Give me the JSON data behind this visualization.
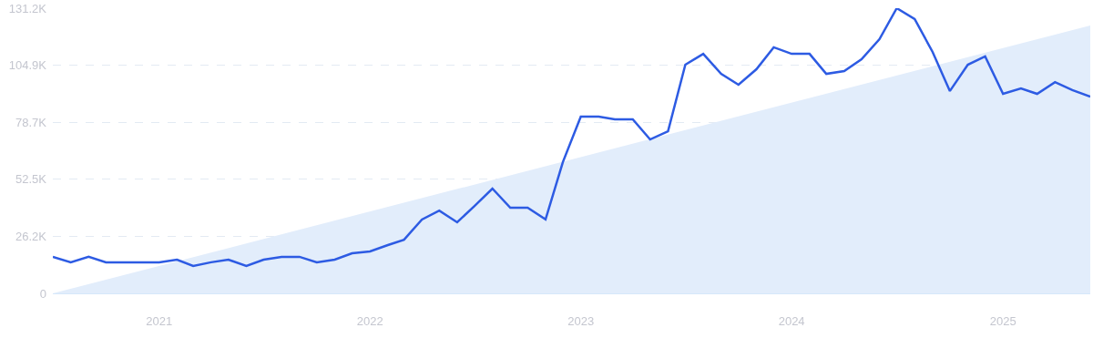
{
  "chart_data": {
    "type": "line",
    "x": [
      "2020-07",
      "2020-08",
      "2020-09",
      "2020-10",
      "2020-11",
      "2020-12",
      "2021-01",
      "2021-02",
      "2021-03",
      "2021-04",
      "2021-05",
      "2021-06",
      "2021-07",
      "2021-08",
      "2021-09",
      "2021-10",
      "2021-11",
      "2021-12",
      "2022-01",
      "2022-02",
      "2022-03",
      "2022-04",
      "2022-05",
      "2022-06",
      "2022-07",
      "2022-08",
      "2022-09",
      "2022-10",
      "2022-11",
      "2022-12",
      "2023-01",
      "2023-02",
      "2023-03",
      "2023-04",
      "2023-05",
      "2023-06",
      "2023-07",
      "2023-08",
      "2023-09",
      "2023-10",
      "2023-11",
      "2023-12",
      "2024-01",
      "2024-02",
      "2024-03",
      "2024-04",
      "2024-05",
      "2024-06",
      "2024-07",
      "2024-08",
      "2024-09",
      "2024-10",
      "2024-11",
      "2024-12",
      "2025-01",
      "2025-02",
      "2025-03",
      "2025-04",
      "2025-05",
      "2025-06"
    ],
    "series": [
      {
        "type": "area",
        "color": "#e2edfb",
        "x": [
          "2020-07",
          "2025-06"
        ],
        "values": [
          0,
          123200
        ]
      },
      {
        "color": "#2d5be3",
        "values": [
          16800,
          14300,
          16800,
          14300,
          14300,
          14300,
          14300,
          15500,
          12600,
          14300,
          15500,
          12600,
          15500,
          16800,
          16800,
          14300,
          15500,
          18400,
          19300,
          22200,
          24700,
          34000,
          38100,
          32700,
          40200,
          48200,
          39400,
          39400,
          34000,
          60400,
          81300,
          81300,
          80100,
          80100,
          70800,
          74600,
          105200,
          110200,
          101000,
          96000,
          103100,
          113200,
          110200,
          110200,
          101000,
          102300,
          107700,
          116900,
          131200,
          126200,
          111100,
          93100,
          105200,
          109000,
          91800,
          94300,
          91800,
          97200,
          93500,
          90500
        ]
      }
    ],
    "xlim": [
      "2020-07",
      "2025-06"
    ],
    "xticks": [
      {
        "value": "2021-01",
        "label": "2021"
      },
      {
        "value": "2022-01",
        "label": "2022"
      },
      {
        "value": "2023-01",
        "label": "2023"
      },
      {
        "value": "2024-01",
        "label": "2024"
      },
      {
        "value": "2025-01",
        "label": "2025"
      }
    ],
    "ylim": [
      0,
      131200
    ],
    "yticks": [
      {
        "value": 0,
        "label": "0"
      },
      {
        "value": 26200,
        "label": "26.2K"
      },
      {
        "value": 52500,
        "label": "52.5K"
      },
      {
        "value": 78700,
        "label": "78.7K"
      },
      {
        "value": 104900,
        "label": "104.9K"
      },
      {
        "value": 131200,
        "label": "131.2K"
      }
    ],
    "grid": "y"
  }
}
